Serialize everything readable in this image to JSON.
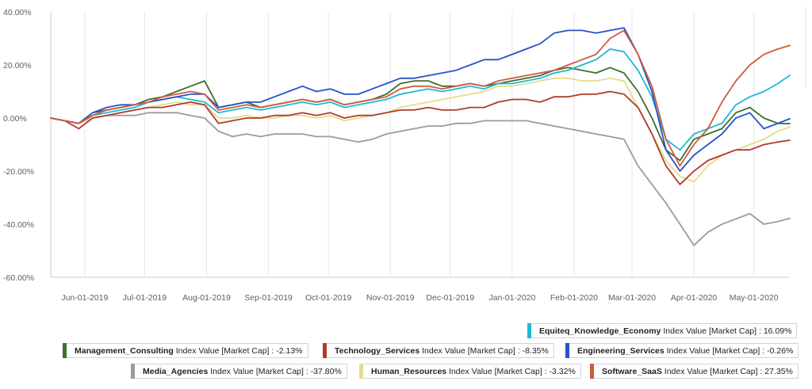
{
  "chart_data": {
    "type": "line",
    "title": "",
    "xlabel": "",
    "ylabel": "",
    "ylim": [
      -60,
      40
    ],
    "y_ticks": [
      40,
      20,
      0,
      -20,
      -40,
      -60
    ],
    "y_tick_labels": [
      "40.00%",
      "20.00%",
      "0.00%",
      "-20.00%",
      "-40.00%",
      "-60.00%"
    ],
    "x_range": [
      "2019-05-15",
      "2020-05-19"
    ],
    "x_ticks": [
      "2019-06-01",
      "2019-07-01",
      "2019-08-01",
      "2019-09-01",
      "2019-10-01",
      "2019-11-01",
      "2019-12-01",
      "2020-01-01",
      "2020-02-01",
      "2020-03-01",
      "2020-04-01",
      "2020-05-01"
    ],
    "x_tick_labels": [
      "Jun-01-2019",
      "Jul-01-2019",
      "Aug-01-2019",
      "Sep-01-2019",
      "Oct-01-2019",
      "Nov-01-2019",
      "Dec-01-2019",
      "Jan-01-2020",
      "Feb-01-2020",
      "Mar-01-2020",
      "Apr-01-2020",
      "May-01-2020"
    ],
    "grid": "vertical",
    "legend_placement": "bottom",
    "x": [
      "2019-05-15",
      "2019-05-22",
      "2019-05-29",
      "2019-06-05",
      "2019-06-12",
      "2019-06-19",
      "2019-06-26",
      "2019-07-03",
      "2019-07-10",
      "2019-07-17",
      "2019-07-24",
      "2019-07-31",
      "2019-08-07",
      "2019-08-14",
      "2019-08-21",
      "2019-08-28",
      "2019-09-04",
      "2019-09-11",
      "2019-09-18",
      "2019-09-25",
      "2019-10-02",
      "2019-10-09",
      "2019-10-16",
      "2019-10-23",
      "2019-10-30",
      "2019-11-06",
      "2019-11-13",
      "2019-11-20",
      "2019-11-27",
      "2019-12-04",
      "2019-12-11",
      "2019-12-18",
      "2019-12-25",
      "2020-01-01",
      "2020-01-08",
      "2020-01-15",
      "2020-01-22",
      "2020-01-29",
      "2020-02-05",
      "2020-02-12",
      "2020-02-19",
      "2020-02-26",
      "2020-03-04",
      "2020-03-11",
      "2020-03-18",
      "2020-03-25",
      "2020-04-01",
      "2020-04-08",
      "2020-04-15",
      "2020-04-22",
      "2020-04-29",
      "2020-05-06",
      "2020-05-13",
      "2020-05-19"
    ],
    "series": [
      {
        "name": "Equiteq_Knowledge_Economy",
        "color": "#1fb8d6",
        "last_label": "16.09%",
        "values": [
          0,
          -1,
          -2,
          1,
          2,
          3,
          4,
          6,
          7,
          8,
          7,
          6,
          2,
          3,
          4,
          3,
          4,
          5,
          6,
          5,
          6,
          4,
          5,
          6,
          7,
          9,
          10,
          11,
          10,
          11,
          12,
          11,
          13,
          13,
          14,
          15,
          17,
          18,
          20,
          22,
          26,
          25,
          18,
          8,
          -8,
          -12,
          -6,
          -4,
          -2,
          5,
          8,
          10,
          13,
          16.09
        ]
      },
      {
        "name": "Management_Consulting",
        "color": "#3f6e2e",
        "last_label": "-2.13%",
        "values": [
          0,
          -1,
          -2,
          2,
          3,
          4,
          5,
          7,
          8,
          10,
          12,
          14,
          4,
          5,
          6,
          4,
          5,
          6,
          7,
          6,
          7,
          5,
          6,
          7,
          9,
          13,
          14,
          14,
          12,
          12,
          13,
          12,
          13,
          14,
          15,
          16,
          18,
          19,
          18,
          17,
          19,
          17,
          10,
          0,
          -12,
          -16,
          -8,
          -6,
          -4,
          2,
          4,
          0,
          -2,
          -2.13
        ]
      },
      {
        "name": "Technology_Services",
        "color": "#b23a2a",
        "last_label": "-8.35%",
        "values": [
          0,
          -1,
          -4,
          0,
          1,
          2,
          3,
          4,
          4,
          5,
          6,
          5,
          -2,
          -1,
          0,
          0,
          1,
          1,
          2,
          1,
          2,
          0,
          1,
          1,
          2,
          3,
          3,
          4,
          3,
          3,
          4,
          4,
          6,
          7,
          7,
          6,
          8,
          8,
          9,
          9,
          10,
          9,
          4,
          -6,
          -18,
          -25,
          -20,
          -16,
          -14,
          -12,
          -12,
          -10,
          -9,
          -8.35
        ]
      },
      {
        "name": "Engineering_Services",
        "color": "#2553c8",
        "last_label": "-0.26%",
        "values": [
          0,
          -1,
          -2,
          2,
          4,
          5,
          5,
          6,
          7,
          8,
          9,
          9,
          4,
          5,
          6,
          6,
          8,
          10,
          12,
          10,
          11,
          9,
          9,
          11,
          13,
          15,
          15,
          16,
          17,
          18,
          20,
          22,
          22,
          24,
          26,
          28,
          32,
          33,
          33,
          32,
          33,
          34,
          24,
          10,
          -12,
          -20,
          -14,
          -10,
          -6,
          0,
          2,
          -4,
          -2,
          -0.26
        ]
      },
      {
        "name": "Media_Agencies",
        "color": "#9b9b9b",
        "last_label": "-37.80%",
        "values": [
          0,
          -1,
          -2,
          0,
          1,
          1,
          1,
          2,
          2,
          2,
          1,
          0,
          -5,
          -7,
          -6,
          -7,
          -6,
          -6,
          -6,
          -7,
          -7,
          -8,
          -9,
          -8,
          -6,
          -5,
          -4,
          -3,
          -3,
          -2,
          -2,
          -1,
          -1,
          -1,
          -1,
          -2,
          -3,
          -4,
          -5,
          -6,
          -7,
          -8,
          -18,
          -25,
          -32,
          -40,
          -48,
          -43,
          -40,
          -38,
          -36,
          -40,
          -39,
          -37.8
        ]
      },
      {
        "name": "Human_Resources",
        "color": "#e3dc8e",
        "last_label": "-3.32%",
        "values": [
          0,
          -1,
          -2,
          0,
          1,
          2,
          3,
          4,
          5,
          6,
          5,
          5,
          0,
          0,
          1,
          0,
          0,
          1,
          1,
          0,
          1,
          -1,
          0,
          1,
          2,
          4,
          5,
          6,
          7,
          8,
          9,
          10,
          12,
          12,
          13,
          14,
          15,
          15,
          14,
          14,
          15,
          14,
          4,
          -6,
          -16,
          -22,
          -24,
          -18,
          -14,
          -12,
          -10,
          -8,
          -5,
          -3.32
        ]
      },
      {
        "name": "Software_SaaS",
        "color": "#cf5b3f",
        "last_label": "27.35%",
        "values": [
          0,
          -1,
          -2,
          1,
          3,
          4,
          5,
          6,
          8,
          9,
          10,
          9,
          3,
          4,
          5,
          4,
          5,
          6,
          7,
          6,
          7,
          5,
          6,
          7,
          8,
          11,
          12,
          12,
          11,
          12,
          13,
          12,
          14,
          15,
          16,
          17,
          18,
          20,
          22,
          24,
          30,
          33,
          24,
          12,
          -8,
          -18,
          -10,
          -4,
          6,
          14,
          20,
          24,
          26,
          27.35
        ]
      }
    ]
  },
  "legend": {
    "index_text": "Index Value [Market Cap] :",
    "items": [
      {
        "name": "Equiteq_Knowledge_Economy",
        "value": "16.09%",
        "color": "#1fb8d6"
      },
      {
        "name": "Management_Consulting",
        "value": "-2.13%",
        "color": "#3f6e2e"
      },
      {
        "name": "Technology_Services",
        "value": "-8.35%",
        "color": "#b23a2a"
      },
      {
        "name": "Engineering_Services",
        "value": "-0.26%",
        "color": "#2553c8"
      },
      {
        "name": "Media_Agencies",
        "value": "-37.80%",
        "color": "#9b9b9b"
      },
      {
        "name": "Human_Resources",
        "value": "-3.32%",
        "color": "#e3dc8e"
      },
      {
        "name": "Software_SaaS",
        "value": "27.35%",
        "color": "#cf5b3f"
      }
    ]
  }
}
